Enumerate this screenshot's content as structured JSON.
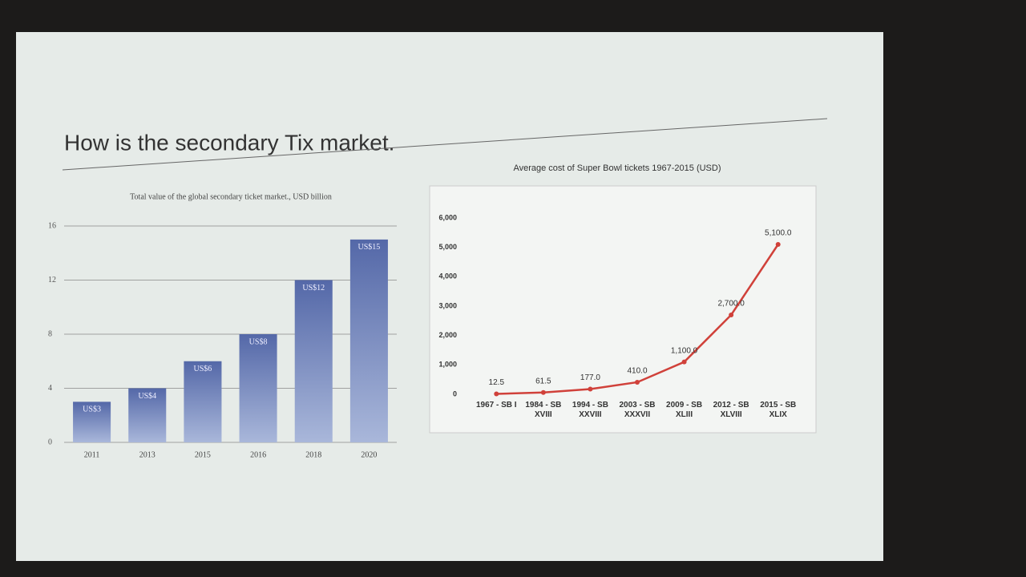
{
  "slide_title": "How is the secondary Tix market.",
  "chart_data": [
    {
      "type": "bar",
      "title": "Total value of the global secondary ticket market., USD billion",
      "categories": [
        "2011",
        "2013",
        "2015",
        "2016",
        "2018",
        "2020"
      ],
      "values": [
        3,
        4,
        6,
        8,
        12,
        15
      ],
      "value_labels": [
        "US$3",
        "US$4",
        "US$6",
        "US$8",
        "US$12",
        "US$15"
      ],
      "color": "#5468a8",
      "ylim": [
        0,
        16
      ],
      "yticks": [
        0,
        4,
        8,
        12,
        16
      ],
      "grid": true
    },
    {
      "type": "line",
      "title": "Average cost of Super Bowl tickets 1967-2015 (USD)",
      "categories": [
        "1967 - SB I",
        "1984 - SB XVIII",
        "1994 - SB XXVIII",
        "2003 - SB XXXVII",
        "2009 - SB XLIII",
        "2012 - SB XLVIII",
        "2015 - SB XLIX"
      ],
      "values": [
        12.5,
        61.5,
        177.0,
        410.0,
        1100.0,
        2700.0,
        5100.0
      ],
      "value_labels": [
        "12.5",
        "61.5",
        "177.0",
        "410.0",
        "1,100.0",
        "2,700.0",
        "5,100.0"
      ],
      "color": "#d0413a",
      "ylim": [
        0,
        6000
      ],
      "yticks": [
        0,
        {
          "value": 1000,
          "label": "1,000"
        },
        {
          "value": 2000,
          "label": "2,000"
        },
        {
          "value": 3000,
          "label": "3,000"
        },
        {
          "value": 4000,
          "label": "4,000"
        },
        {
          "value": 5000,
          "label": "5,000"
        },
        {
          "value": 6000,
          "label": "6,000"
        }
      ],
      "grid": false
    }
  ]
}
